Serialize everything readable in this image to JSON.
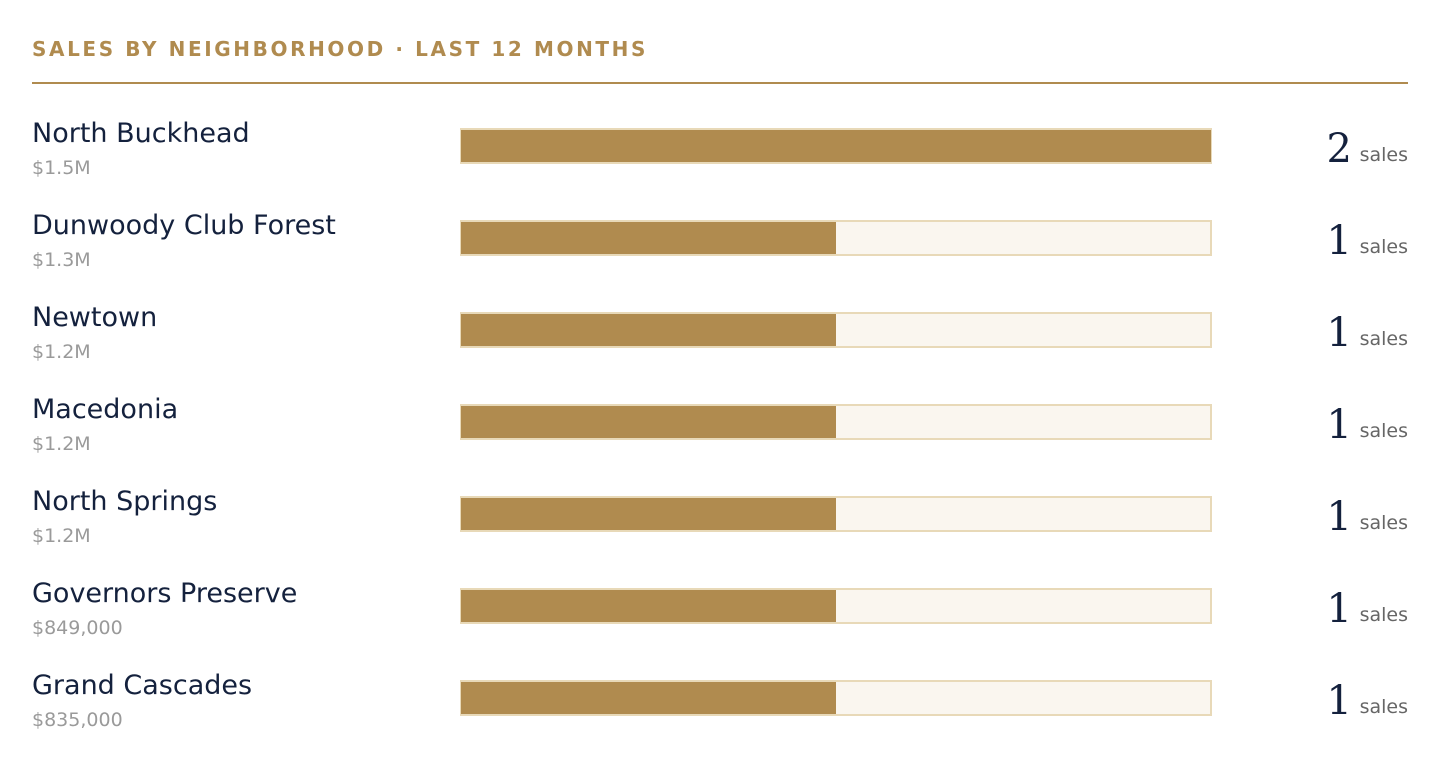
{
  "chart_data": {
    "type": "hbar",
    "title": "SALES BY NEIGHBORHOOD · LAST 12 MONTHS",
    "categories": [
      "North Buckhead",
      "Dunwoody Club Forest",
      "Newtown",
      "Macedonia",
      "North Springs",
      "Governors Preserve",
      "Grand Cascades"
    ],
    "prices": [
      "$1.5M",
      "$1.3M",
      "$1.2M",
      "$1.2M",
      "$1.2M",
      "$849,000",
      "$835,000"
    ],
    "values": [
      2,
      1,
      1,
      1,
      1,
      1,
      1
    ],
    "unit": "sales",
    "xlim": [
      0,
      2
    ],
    "color": "#b08b4f",
    "track_color": "#faf6ef"
  }
}
